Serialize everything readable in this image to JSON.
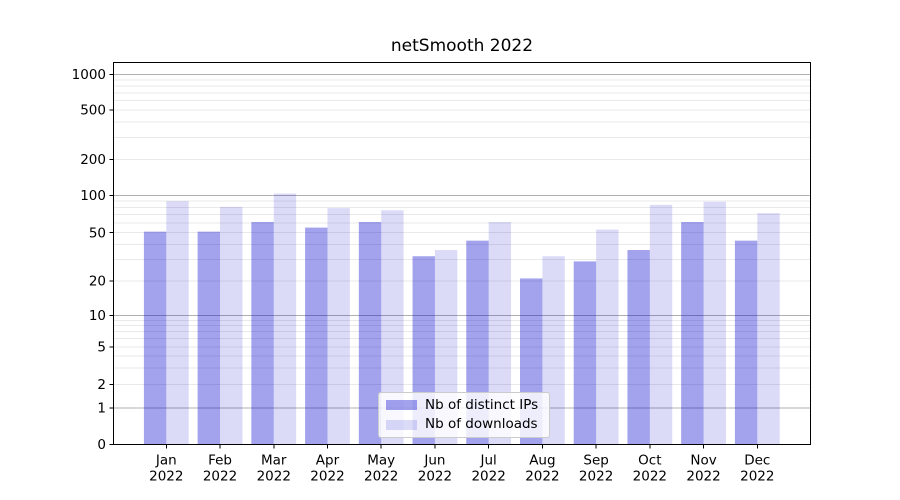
{
  "title": "netSmooth 2022",
  "chart_data": {
    "type": "bar",
    "title": "netSmooth 2022",
    "x_year": "2022",
    "categories": [
      "Jan",
      "Feb",
      "Mar",
      "Apr",
      "May",
      "Jun",
      "Jul",
      "Aug",
      "Sep",
      "Oct",
      "Nov",
      "Dec"
    ],
    "series": [
      {
        "name": "Nb of distinct IPs",
        "color": "#0000cc",
        "alpha": 0.36,
        "values": [
          51,
          51,
          61,
          55,
          61,
          32,
          43,
          21,
          29,
          36,
          61,
          43
        ]
      },
      {
        "name": "Nb of downloads",
        "color": "#0000cc",
        "alpha": 0.14,
        "values": [
          90,
          81,
          104,
          79,
          76,
          36,
          61,
          32,
          53,
          84,
          89,
          72
        ]
      }
    ],
    "yscale": "symlog",
    "yticks": [
      0,
      1,
      2,
      5,
      10,
      20,
      50,
      100,
      200,
      500,
      1000
    ],
    "ylim": [
      0,
      1250
    ],
    "grid": "horizontal, major and minor (log decades)",
    "legend_position": "lower center",
    "colors": {
      "bar_distinct_ips_rendered": "#a3a3ef",
      "bar_downloads_rendered": "#dcdcf8",
      "major_grid": "#b0b0b0",
      "minor_grid": "#e9e9e9",
      "axis": "#000000"
    }
  }
}
